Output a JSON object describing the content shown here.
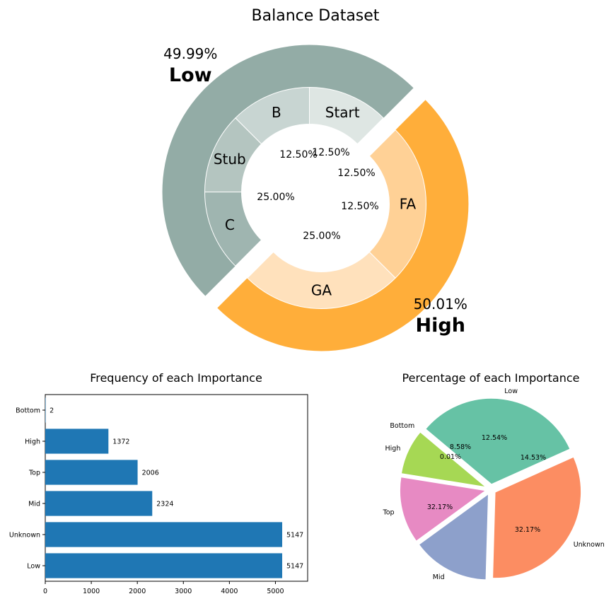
{
  "chart_data": [
    {
      "type": "pie",
      "subtype": "nested-donut",
      "title": "Balance Dataset",
      "outer": {
        "labels": [
          "Low",
          "High"
        ],
        "values": [
          49.99,
          50.01
        ],
        "percent_labels": [
          "49.99%",
          "50.01%"
        ],
        "colors": [
          "#93aca6",
          "#ffae3a"
        ]
      },
      "inner": {
        "labels": [
          "Start",
          "B",
          "Stub",
          "C",
          "GA",
          "FA"
        ],
        "values": [
          12.5,
          12.5,
          12.5,
          12.5,
          25.0,
          25.0
        ],
        "percent_labels": [
          "12.50%",
          "12.50%",
          "12.50%",
          "12.50%",
          "25.00%",
          "25.00%"
        ],
        "colors": [
          "#dee6e3",
          "#c8d5d2",
          "#b4c5c0",
          "#9fb5b0",
          "#ffe1bc",
          "#ffd196"
        ]
      }
    },
    {
      "type": "bar",
      "orientation": "horizontal",
      "title": "Frequency of each Importance",
      "categories": [
        "Bottom",
        "High",
        "Top",
        "Mid",
        "Unknown",
        "Low"
      ],
      "values": [
        2,
        1372,
        2006,
        2324,
        5147,
        5147
      ],
      "value_labels": [
        "2",
        "1372",
        "2006",
        "2324",
        "5147",
        "5147"
      ],
      "xticks": [
        "0",
        "1000",
        "2000",
        "3000",
        "4000",
        "5000"
      ],
      "xlim": [
        0,
        5700
      ],
      "color": "#1f77b4"
    },
    {
      "type": "pie",
      "title": "Percentage of each Importance",
      "labels": [
        "Bottom",
        "High",
        "Top",
        "Mid",
        "Unknown",
        "Low"
      ],
      "values": [
        0.01,
        8.58,
        12.54,
        14.53,
        32.17,
        32.17
      ],
      "percent_labels": [
        "0.01%",
        "8.58%",
        "12.54%",
        "14.53%",
        "32.17%",
        "32.17%"
      ],
      "colors": [
        "#66c2a5",
        "#a6d854",
        "#e78ac3",
        "#8da0cb",
        "#fc8d62",
        "#66c2a5"
      ]
    }
  ]
}
